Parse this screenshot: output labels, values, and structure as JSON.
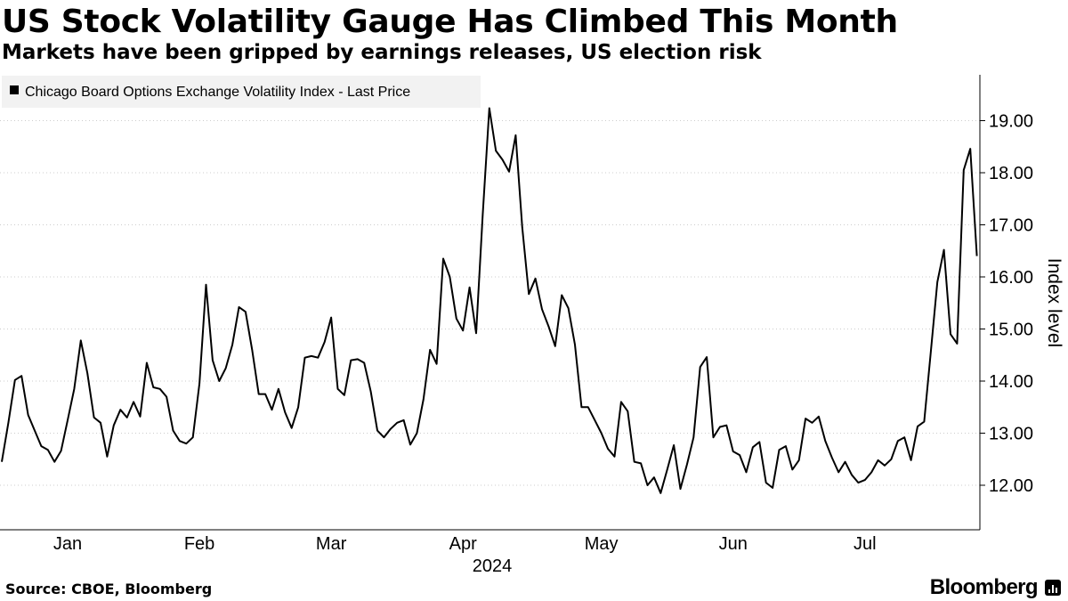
{
  "header": {
    "title": "US Stock Volatility Gauge Has Climbed This Month",
    "subtitle": "Markets have been gripped by earnings releases, US election risk"
  },
  "footer": {
    "source": "Source: CBOE, Bloomberg",
    "brand": "Bloomberg"
  },
  "colors": {
    "line": "#000000",
    "legend_bg": "#f2f2f2",
    "axis": "#000000",
    "grid": "#cccccc"
  },
  "chart_data": {
    "type": "line",
    "title": "US Stock Volatility Gauge Has Climbed This Month",
    "subtitle": "Markets have been gripped by earnings releases, US election risk",
    "xlabel": "2024",
    "ylabel": "Index level",
    "legend_position": "top-left",
    "ylim": [
      11.2,
      19.9
    ],
    "grid": true,
    "y_ticks": [
      12,
      13,
      14,
      15,
      16,
      17,
      18,
      19
    ],
    "y_tick_labels": [
      "12.00",
      "13.00",
      "14.00",
      "15.00",
      "16.00",
      "17.00",
      "18.00",
      "19.00"
    ],
    "x_ticks": [
      {
        "label": "Jan",
        "index": 10
      },
      {
        "label": "Feb",
        "index": 30
      },
      {
        "label": "Mar",
        "index": 50
      },
      {
        "label": "Apr",
        "index": 70
      },
      {
        "label": "May",
        "index": 91
      },
      {
        "label": "Jun",
        "index": 111
      },
      {
        "label": "Jul",
        "index": 131
      }
    ],
    "x_count": 145,
    "series": [
      {
        "name": "Chicago Board Options Exchange Volatility Index - Last Price",
        "values": [
          12.45,
          13.2,
          14.02,
          14.1,
          13.35,
          13.05,
          12.75,
          12.68,
          12.45,
          12.66,
          13.25,
          13.85,
          14.78,
          14.15,
          13.3,
          13.2,
          12.55,
          13.15,
          13.45,
          13.3,
          13.6,
          13.32,
          14.35,
          13.88,
          13.85,
          13.7,
          13.05,
          12.85,
          12.8,
          12.92,
          13.95,
          15.85,
          14.4,
          14.0,
          14.25,
          14.7,
          15.42,
          15.33,
          14.6,
          13.75,
          13.75,
          13.45,
          13.85,
          13.4,
          13.1,
          13.5,
          14.45,
          14.48,
          14.45,
          14.75,
          15.22,
          13.85,
          13.73,
          14.4,
          14.42,
          14.35,
          13.8,
          13.05,
          12.92,
          13.08,
          13.2,
          13.25,
          12.78,
          13.0,
          13.65,
          14.6,
          14.33,
          16.35,
          16.0,
          15.2,
          14.97,
          15.8,
          14.92,
          17.2,
          19.24,
          18.42,
          18.25,
          18.02,
          18.72,
          16.95,
          15.67,
          15.97,
          15.38,
          15.05,
          14.67,
          15.65,
          15.4,
          14.7,
          13.5,
          13.5,
          13.25,
          13.0,
          12.7,
          12.55,
          13.6,
          13.42,
          12.45,
          12.42,
          12.0,
          12.15,
          11.85,
          12.3,
          12.77,
          11.93,
          12.4,
          12.92,
          14.27,
          14.46,
          12.92,
          13.12,
          13.15,
          12.65,
          12.58,
          12.25,
          12.73,
          12.83,
          12.05,
          11.95,
          12.68,
          12.75,
          12.3,
          12.48,
          13.28,
          13.2,
          13.32,
          12.85,
          12.53,
          12.25,
          12.45,
          12.2,
          12.05,
          12.1,
          12.25,
          12.48,
          12.38,
          12.5,
          12.85,
          12.92,
          12.48,
          13.13,
          13.22,
          14.55,
          15.9,
          16.52,
          14.9,
          14.72,
          18.05,
          18.46,
          16.4
        ]
      }
    ]
  }
}
